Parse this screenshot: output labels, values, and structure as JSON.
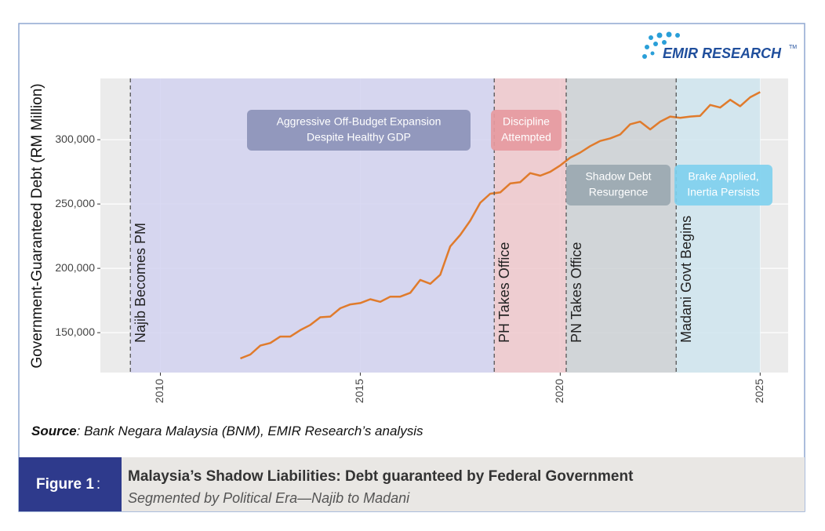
{
  "logo": {
    "name": "EMIR RESEARCH",
    "mark": "TM"
  },
  "source": {
    "label": "Source",
    "text": ": Bank Negara Malaysia (BNM), EMIR Research’s analysis"
  },
  "figure": {
    "label": "Figure 1",
    "separator": ":",
    "title": "Malaysia’s Shadow Liabilities: Debt guaranteed by Federal Government",
    "subtitle": "Segmented by Political Era—Najib to Madani"
  },
  "chart_data": {
    "type": "line",
    "y_label": "Government-Guaranteed Debt (RM Million)",
    "x": [
      2012.0,
      2012.25,
      2012.5,
      2012.75,
      2013.0,
      2013.25,
      2013.5,
      2013.75,
      2014.0,
      2014.25,
      2014.5,
      2014.75,
      2015.0,
      2015.25,
      2015.5,
      2015.75,
      2016.0,
      2016.25,
      2016.5,
      2016.75,
      2017.0,
      2017.25,
      2017.5,
      2017.75,
      2018.0,
      2018.25,
      2018.5,
      2018.75,
      2019.0,
      2019.25,
      2019.5,
      2019.75,
      2020.0,
      2020.25,
      2020.5,
      2020.75,
      2021.0,
      2021.25,
      2021.5,
      2021.75,
      2022.0,
      2022.25,
      2022.5,
      2022.75,
      2023.0,
      2023.25,
      2023.5,
      2023.75,
      2024.0,
      2024.25,
      2024.5,
      2024.75,
      2025.0
    ],
    "values": [
      130000,
      133000,
      140000,
      142000,
      147000,
      147000,
      152000,
      156000,
      162000,
      162500,
      169000,
      172000,
      173000,
      176000,
      174000,
      178000,
      178000,
      181000,
      191000,
      188000,
      195000,
      217000,
      226000,
      237000,
      251000,
      258000,
      259000,
      266000,
      267000,
      274000,
      272000,
      275000,
      280000,
      286000,
      290000,
      295000,
      299000,
      301000,
      304000,
      312000,
      314000,
      308000,
      314000,
      318000,
      317000,
      318000,
      318500,
      327000,
      325000,
      331000,
      326000,
      333000,
      337000
    ],
    "color": "#e07b2c",
    "xlim": [
      2008.5,
      2025.7
    ],
    "ylim": [
      119000,
      347600
    ],
    "xticks": [
      2010,
      2015,
      2020,
      2025
    ],
    "yticks": [
      {
        "value": 150000,
        "label": "150,000"
      },
      {
        "value": 200000,
        "label": "200,000"
      },
      {
        "value": 250000,
        "label": "250,000"
      },
      {
        "value": 300000,
        "label": "300,000"
      }
    ],
    "grid": true,
    "eras": [
      {
        "start": 2009.25,
        "end": 2018.35,
        "label": "Najib Becomes PM",
        "color": "#d2d2f0",
        "note": [
          "Aggressive Off-Budget Expansion",
          "Despite Healthy GDP"
        ],
        "note_color": "#8c93b8"
      },
      {
        "start": 2018.35,
        "end": 2020.15,
        "label": "PH Takes Office",
        "color": "#efc8cd",
        "note": [
          "Discipline",
          "Attempted"
        ],
        "note_color": "#e69aa0"
      },
      {
        "start": 2020.15,
        "end": 2022.9,
        "label": "PN Takes Office",
        "color": "#ccd1d5",
        "note": [
          "Shadow Debt",
          "Resurgence"
        ],
        "note_color": "#9aa8b1"
      },
      {
        "start": 2022.9,
        "end": 2025.0,
        "label": "Madani Govt Begins",
        "color": "#cfe5ee",
        "note": [
          "Brake Applied,",
          "Inertia Persists"
        ],
        "note_color": "#7fd0ee"
      }
    ]
  }
}
